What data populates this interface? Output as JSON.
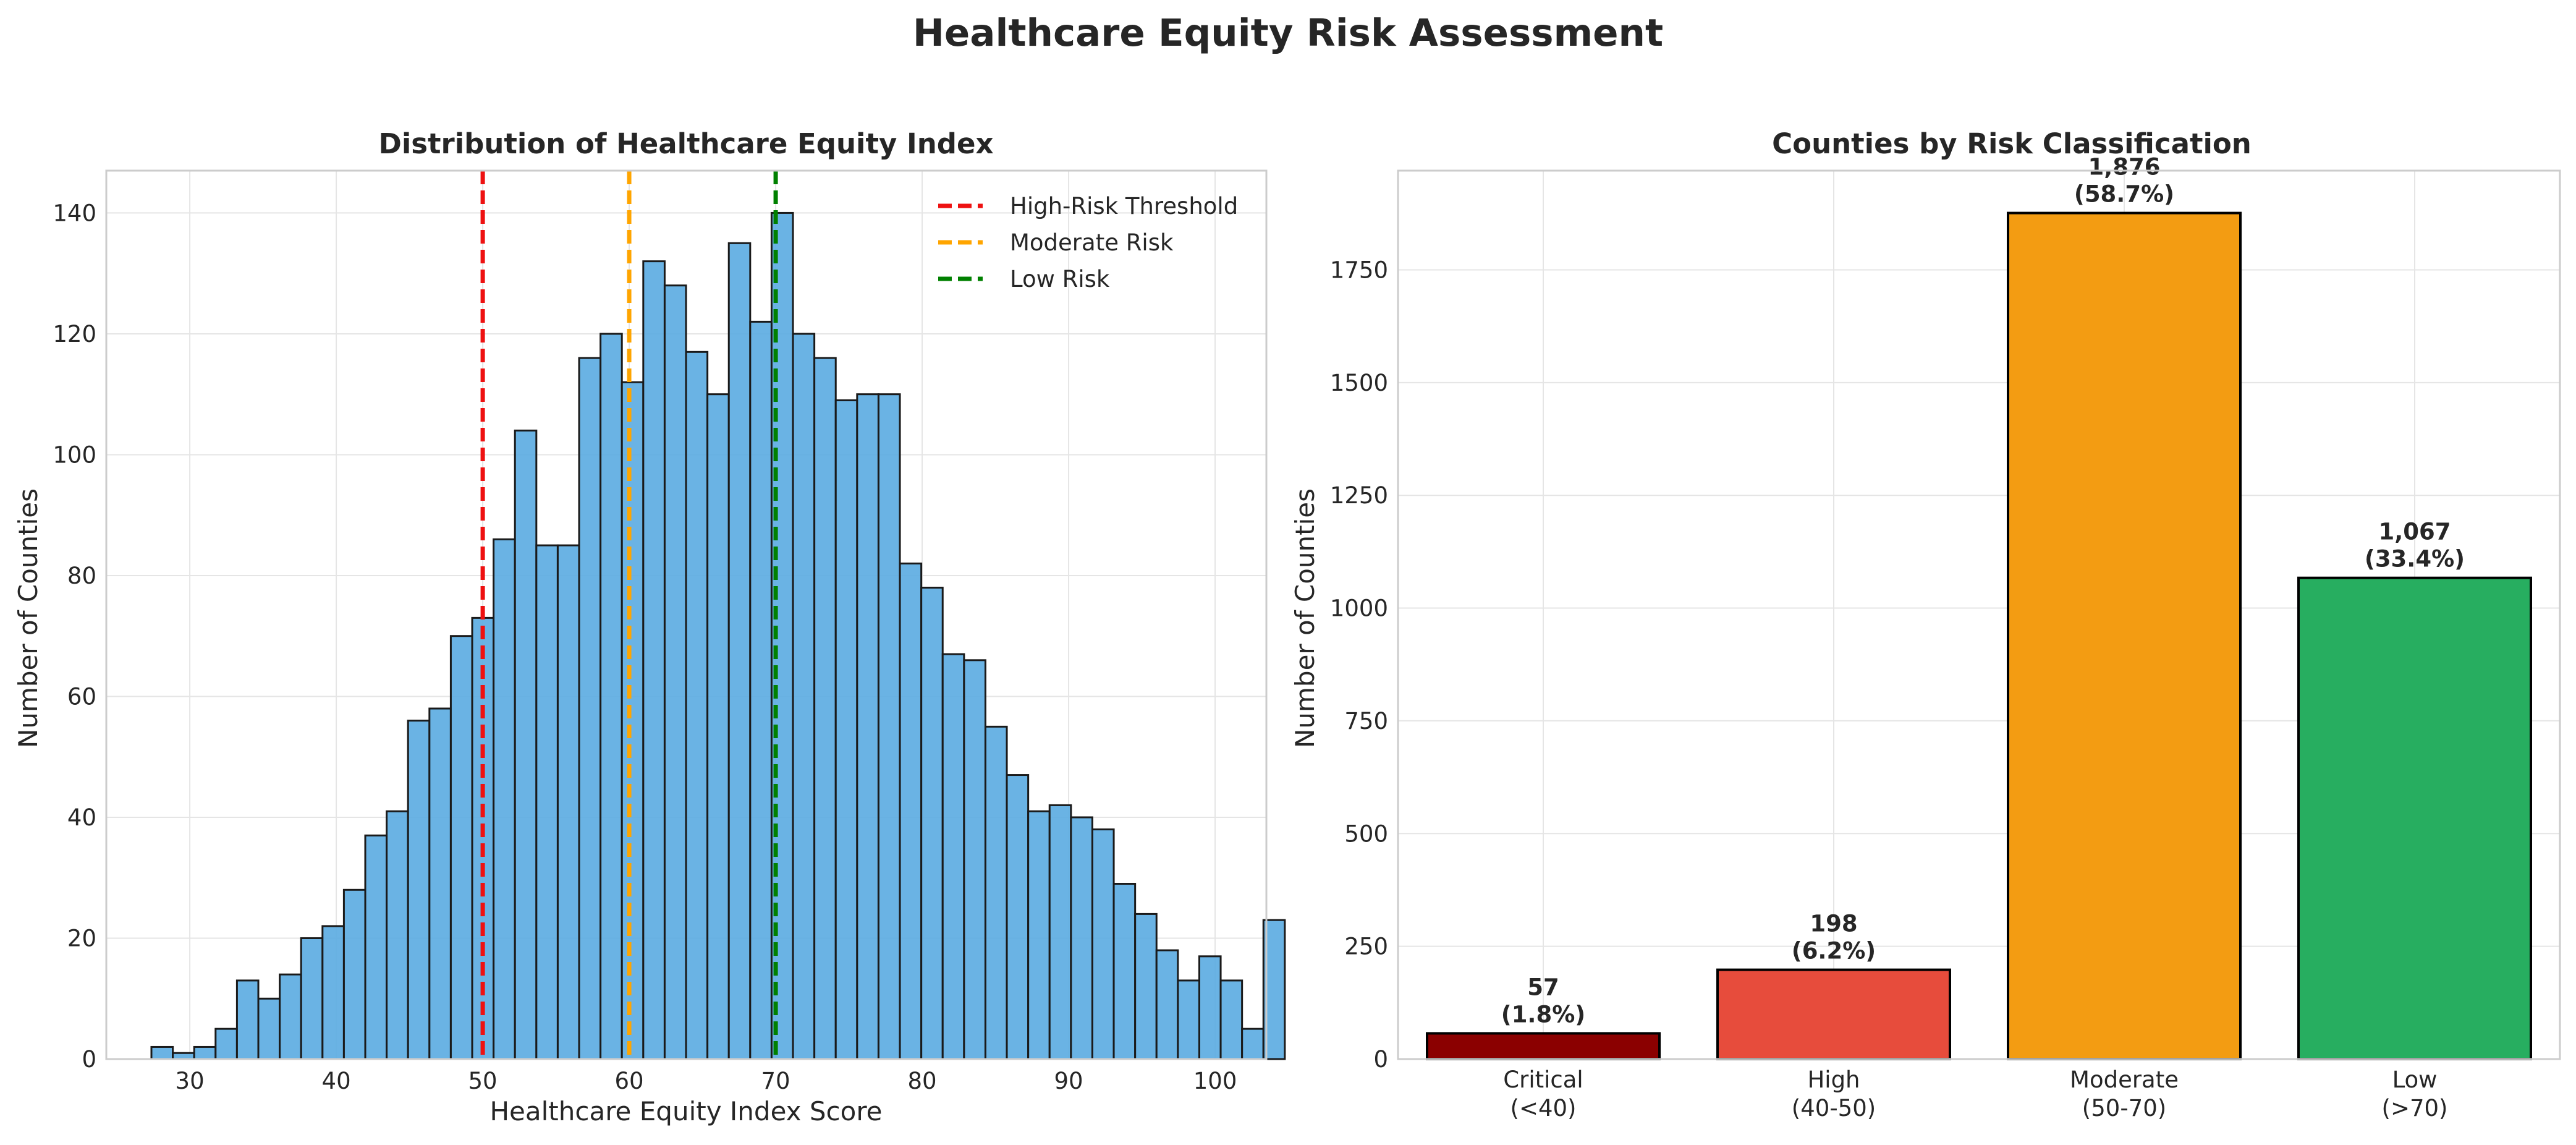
{
  "figure": {
    "title": "Healthcare Equity Risk Assessment"
  },
  "chart_data": [
    {
      "type": "bar",
      "subtype": "histogram",
      "title": "Distribution of Healthcare Equity Index",
      "xlabel": "Healthcare Equity Index Score",
      "ylabel": "Number of Counties",
      "xlim": [
        24.3,
        103.5
      ],
      "ylim": [
        0,
        147
      ],
      "xticks": [
        30,
        40,
        50,
        60,
        70,
        80,
        90,
        100
      ],
      "yticks": [
        0,
        20,
        40,
        60,
        80,
        100,
        120,
        140
      ],
      "grid": true,
      "bin_start": 27.38,
      "bin_width": 1.46,
      "counts": [
        2,
        1,
        2,
        5,
        13,
        10,
        14,
        20,
        22,
        28,
        37,
        41,
        56,
        58,
        70,
        73,
        86,
        104,
        85,
        85,
        116,
        120,
        112,
        132,
        128,
        117,
        110,
        135,
        122,
        140,
        120,
        116,
        109,
        110,
        110,
        82,
        78,
        67,
        66,
        55,
        47,
        41,
        42,
        40,
        38,
        29,
        24,
        18,
        13,
        17,
        13,
        5,
        23
      ],
      "bar_color": "#5DADE2",
      "edge_color": "#1a1a1a",
      "reference_lines": [
        {
          "name": "High-Risk Threshold",
          "x": 50,
          "color": "#ee1111"
        },
        {
          "name": "Moderate Risk",
          "x": 60,
          "color": "#ffa500"
        },
        {
          "name": "Low Risk",
          "x": 70,
          "color": "#008000"
        }
      ],
      "legend_position": "top-right"
    },
    {
      "type": "bar",
      "title": "Counties by Risk Classification",
      "xlabel": "",
      "ylabel": "Number of Counties",
      "ylim": [
        0,
        1970
      ],
      "yticks": [
        0,
        250,
        500,
        750,
        1000,
        1250,
        1500,
        1750
      ],
      "grid": true,
      "categories": [
        {
          "line1": "Critical",
          "line2": "(<40)"
        },
        {
          "line1": "High",
          "line2": "(40-50)"
        },
        {
          "line1": "Moderate",
          "line2": "(50-70)"
        },
        {
          "line1": "Low",
          "line2": "(>70)"
        }
      ],
      "values": [
        57,
        198,
        1876,
        1067
      ],
      "value_labels": [
        "57",
        "198",
        "1,876",
        "1,067"
      ],
      "percent_labels": [
        "(1.8%)",
        "(6.2%)",
        "(58.7%)",
        "(33.4%)"
      ],
      "colors": [
        "#8B0000",
        "#E74C3C",
        "#F39C12",
        "#27AE60"
      ]
    }
  ]
}
